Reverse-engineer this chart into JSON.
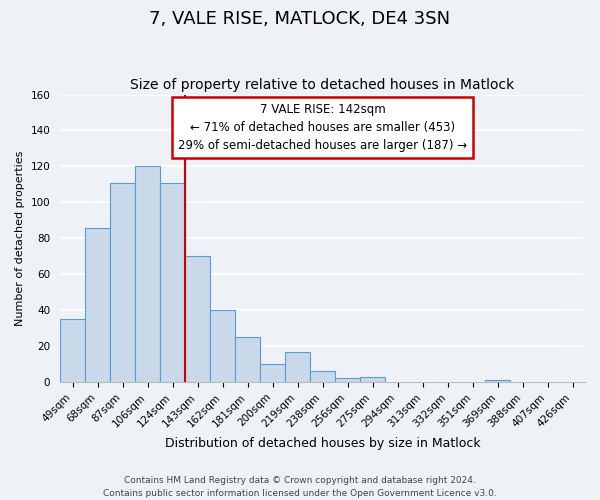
{
  "title": "7, VALE RISE, MATLOCK, DE4 3SN",
  "subtitle": "Size of property relative to detached houses in Matlock",
  "xlabel": "Distribution of detached houses by size in Matlock",
  "ylabel": "Number of detached properties",
  "bin_labels": [
    "49sqm",
    "68sqm",
    "87sqm",
    "106sqm",
    "124sqm",
    "143sqm",
    "162sqm",
    "181sqm",
    "200sqm",
    "219sqm",
    "238sqm",
    "256sqm",
    "275sqm",
    "294sqm",
    "313sqm",
    "332sqm",
    "351sqm",
    "369sqm",
    "388sqm",
    "407sqm",
    "426sqm"
  ],
  "bar_heights": [
    35,
    86,
    111,
    120,
    111,
    70,
    40,
    25,
    10,
    17,
    6,
    2,
    3,
    0,
    0,
    0,
    0,
    1,
    0,
    0,
    0
  ],
  "bar_color": "#c9d9ea",
  "bar_edge_color": "#5b9bd5",
  "marker_bin_index": 5,
  "marker_color": "#cc0000",
  "annotation_line1": "7 VALE RISE: 142sqm",
  "annotation_line2": "← 71% of detached houses are smaller (453)",
  "annotation_line3": "29% of semi-detached houses are larger (187) →",
  "annotation_box_color": "#ffffff",
  "annotation_box_edge": "#cc0000",
  "ylim": [
    0,
    160
  ],
  "yticks": [
    0,
    20,
    40,
    60,
    80,
    100,
    120,
    140,
    160
  ],
  "footer1": "Contains HM Land Registry data © Crown copyright and database right 2024.",
  "footer2": "Contains public sector information licensed under the Open Government Licence v3.0.",
  "bg_color": "#eef2f7",
  "grid_color": "#ffffff",
  "title_fontsize": 13,
  "subtitle_fontsize": 10,
  "ylabel_fontsize": 8,
  "xlabel_fontsize": 9,
  "tick_fontsize": 7.5,
  "footer_fontsize": 6.5
}
